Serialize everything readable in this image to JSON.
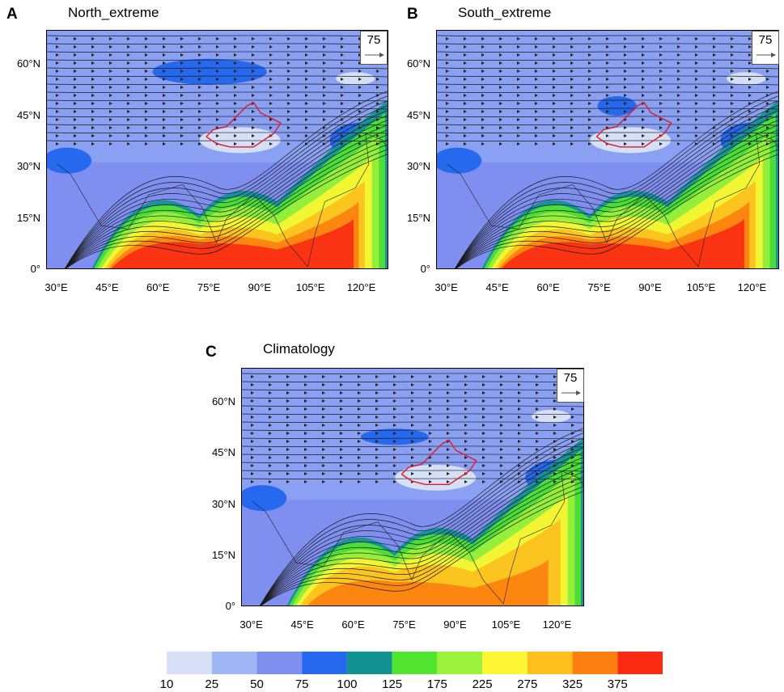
{
  "panels": [
    {
      "letter": "A",
      "title": "North_extreme",
      "ref_vector": "75"
    },
    {
      "letter": "B",
      "title": "South_extreme",
      "ref_vector": "75"
    },
    {
      "letter": "C",
      "title": "Climatology",
      "ref_vector": "75"
    }
  ],
  "lat_ticks": [
    "60°N",
    "45°N",
    "30°N",
    "15°N",
    "0°"
  ],
  "lon_ticks": [
    "30°E",
    "45°E",
    "60°E",
    "75°E",
    "90°E",
    "105°E",
    "120°E"
  ],
  "colorbar": {
    "labels": [
      "10",
      "25",
      "50",
      "75",
      "100",
      "125",
      "175",
      "225",
      "275",
      "325",
      "375"
    ],
    "colors": [
      "#d5e0f7",
      "#9fb6f4",
      "#7f8ff0",
      "#2669ef",
      "#129393",
      "#52e52f",
      "#9bf13b",
      "#fdf531",
      "#fdbf1d",
      "#fd7f10",
      "#fa2a13"
    ]
  },
  "colors": {
    "region_outline": "#e0182a",
    "streamline": "#1a1a1a",
    "background_field": "#8aa0f2"
  }
}
